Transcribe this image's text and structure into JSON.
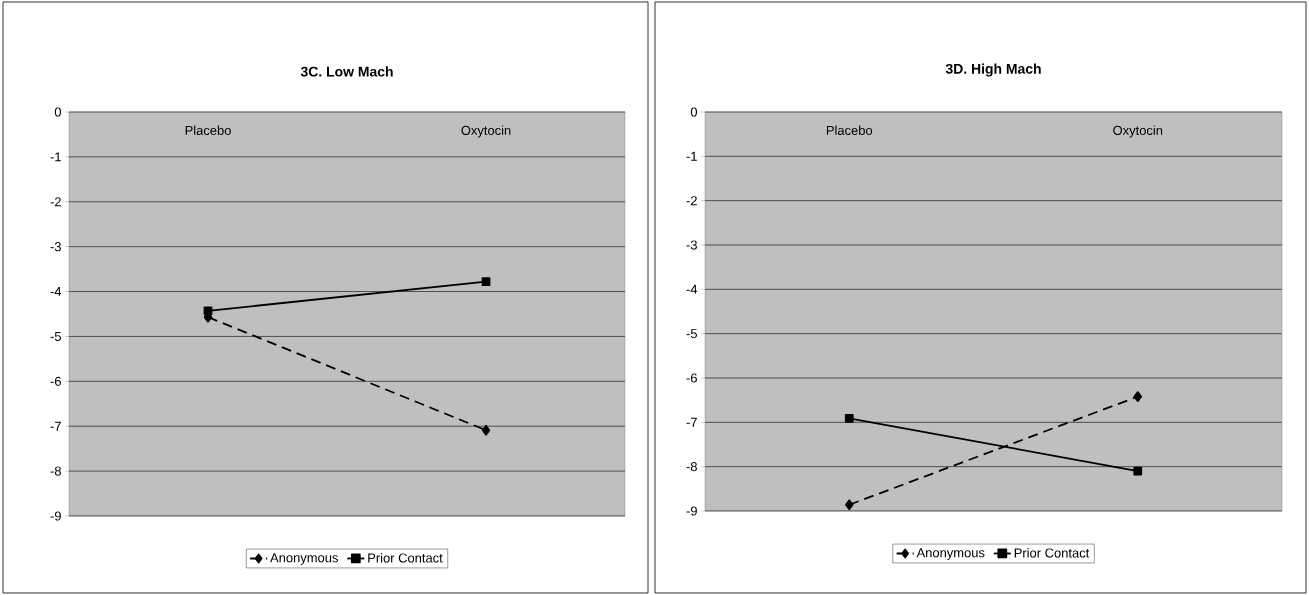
{
  "chart_data": [
    {
      "type": "line",
      "title": "3C. Low Mach",
      "categories": [
        "Placebo",
        "Oxytocin"
      ],
      "ylim": [
        -9,
        0
      ],
      "yticks": [
        0,
        -1,
        -2,
        -3,
        -4,
        -5,
        -6,
        -7,
        -8,
        -9
      ],
      "grid": "y",
      "legend": "bottom",
      "series": [
        {
          "name": "Anonymous",
          "color": "#000000",
          "values": [
            -4.57,
            -7.09
          ],
          "marker": "diamond",
          "line_style": "dashed"
        },
        {
          "name": "Prior Contact",
          "color": "#000000",
          "values": [
            -4.43,
            -3.78
          ],
          "marker": "square",
          "line_style": "solid"
        }
      ]
    },
    {
      "type": "line",
      "title": "3D. High Mach",
      "categories": [
        "Placebo",
        "Oxytocin"
      ],
      "ylim": [
        -9,
        0
      ],
      "yticks": [
        0,
        -1,
        -2,
        -3,
        -4,
        -5,
        -6,
        -7,
        -8,
        -9
      ],
      "grid": "y",
      "legend": "bottom",
      "series": [
        {
          "name": "Anonymous",
          "color": "#000000",
          "values": [
            -8.86,
            -6.42
          ],
          "marker": "diamond",
          "line_style": "dashed"
        },
        {
          "name": "Prior Contact",
          "color": "#000000",
          "values": [
            -6.91,
            -8.1
          ],
          "marker": "square",
          "line_style": "solid"
        }
      ]
    }
  ]
}
